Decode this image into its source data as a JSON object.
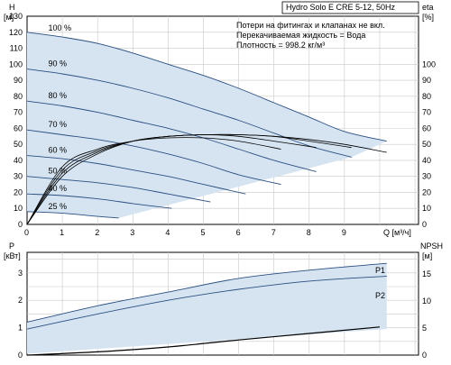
{
  "chart_data": [
    {
      "type": "line",
      "name": "head-chart",
      "title": "Hydro Solo E CRE 5-12, 50Hz",
      "info_lines": [
        "Потери на фитингах и клапанах не вкл.",
        "Перекачиваемая жидкость = Вода",
        "Плотность = 998.2 кг/м³"
      ],
      "ylabel_left": [
        "H",
        "[м]"
      ],
      "ylabel_right": [
        "eta",
        "[%]"
      ],
      "xlabel": "Q [м³/ч]",
      "xlim": [
        0,
        11.1
      ],
      "ylim": [
        0,
        130
      ],
      "x_ticks": [
        "0",
        "1",
        "2",
        "3",
        "4",
        "5",
        "6",
        "7",
        "8",
        "9"
      ],
      "y_ticks": [
        "0",
        "10",
        "20",
        "30",
        "40",
        "50",
        "60",
        "70",
        "80",
        "90",
        "100",
        "110",
        "120",
        "130"
      ],
      "right_ticks": [
        "0",
        "10",
        "20",
        "30",
        "40",
        "50",
        "60",
        "70",
        "80",
        "90",
        "100"
      ],
      "eta_scale_max": 100,
      "grid": true,
      "speed_curves": [
        {
          "name": "100 %",
          "x": [
            0,
            1,
            2,
            3,
            4,
            5,
            6,
            7,
            8,
            9,
            10.2
          ],
          "y": [
            120,
            117,
            113,
            107,
            100,
            93,
            85,
            76,
            67,
            58,
            52
          ]
        },
        {
          "name": "90 %",
          "x": [
            0,
            1,
            2,
            3,
            4,
            5,
            6,
            7,
            8,
            9.2
          ],
          "y": [
            97,
            94,
            90,
            85,
            79,
            72,
            65,
            57,
            49,
            42
          ]
        },
        {
          "name": "80 %",
          "x": [
            0,
            1,
            2,
            3,
            4,
            5,
            6,
            7,
            8.2
          ],
          "y": [
            77,
            74,
            70,
            65,
            60,
            54,
            47,
            40,
            33
          ]
        },
        {
          "name": "70 %",
          "x": [
            0,
            1,
            2,
            3,
            4,
            5,
            6,
            7.2
          ],
          "y": [
            59,
            56,
            53,
            49,
            44,
            38,
            31,
            25
          ]
        },
        {
          "name": "60 %",
          "x": [
            0,
            1,
            2,
            3,
            4,
            5,
            6.2
          ],
          "y": [
            43,
            41,
            38,
            34,
            30,
            25,
            19
          ]
        },
        {
          "name": "50 %",
          "x": [
            0,
            1,
            2,
            3,
            4,
            5.2
          ],
          "y": [
            30,
            28,
            26,
            23,
            19,
            14
          ]
        },
        {
          "name": "40 %",
          "x": [
            0,
            1,
            2,
            3,
            4.1
          ],
          "y": [
            19,
            18,
            16,
            13,
            10
          ]
        },
        {
          "name": "25 %",
          "x": [
            0,
            1,
            2,
            2.6
          ],
          "y": [
            8,
            7,
            5,
            4
          ]
        }
      ],
      "eta_curves": [
        {
          "x": [
            0,
            1,
            2,
            3,
            4,
            5,
            6,
            7,
            8,
            9,
            10.2
          ],
          "y": [
            0,
            30,
            44,
            52,
            55,
            56,
            56,
            55,
            53,
            50,
            45
          ]
        },
        {
          "x": [
            0,
            1,
            2,
            3,
            4,
            5,
            6,
            7,
            8,
            9.2
          ],
          "y": [
            0,
            32,
            45,
            52,
            55,
            56,
            56,
            55,
            52,
            48
          ]
        },
        {
          "x": [
            0,
            1,
            2,
            3,
            4,
            5,
            6,
            7,
            8.2
          ],
          "y": [
            0,
            34,
            46,
            52,
            55,
            56,
            55,
            52,
            48
          ]
        },
        {
          "x": [
            0,
            1,
            2,
            3,
            4,
            5,
            6,
            7.2
          ],
          "y": [
            0,
            36,
            47,
            52,
            54,
            54,
            52,
            47
          ]
        }
      ]
    },
    {
      "type": "line",
      "name": "power-chart",
      "ylabel_left": [
        "P",
        "[кВт]"
      ],
      "ylabel_right": [
        "NPSH",
        "[м]"
      ],
      "xlim": [
        0,
        11.1
      ],
      "ylim": [
        0,
        3.75
      ],
      "y_ticks": [
        "0",
        "1",
        "2",
        "3"
      ],
      "right_ticks": [
        "0",
        "5",
        "10",
        "15"
      ],
      "npsh_scale_max": 19,
      "grid": true,
      "series_labels": [
        "P1",
        "P2"
      ],
      "power_curves": [
        {
          "name": "P1",
          "x": [
            0,
            2,
            4,
            6,
            8,
            10.2
          ],
          "y": [
            1.2,
            1.8,
            2.3,
            2.8,
            3.1,
            3.35
          ]
        },
        {
          "name": "P2",
          "x": [
            0,
            2,
            4,
            6,
            8,
            10.2
          ],
          "y": [
            0.95,
            1.5,
            2.0,
            2.4,
            2.7,
            2.88
          ]
        }
      ],
      "npsh_curve": {
        "x": [
          0,
          2,
          4,
          6,
          8,
          10
        ],
        "y": [
          0,
          0.6,
          1.5,
          2.8,
          4.0,
          5.2
        ]
      }
    }
  ]
}
